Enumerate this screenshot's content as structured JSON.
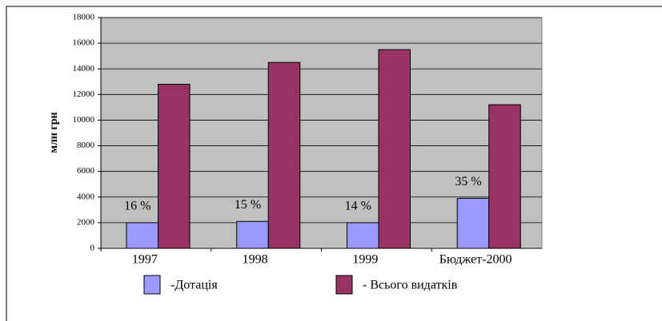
{
  "chart_data": {
    "type": "bar",
    "y_label": "млн грн",
    "categories": [
      "1997",
      "1998",
      "1999",
      "Бюджет-2000"
    ],
    "series": [
      {
        "name": "-Дотація",
        "color": "#9999ff",
        "values": [
          2000,
          2100,
          2000,
          3900
        ]
      },
      {
        "name": "- Всього видатків",
        "color": "#993366",
        "values": [
          12800,
          14500,
          15500,
          11200
        ]
      }
    ],
    "annotations": [
      "16 %",
      "15 %",
      "14 %",
      "35 %"
    ],
    "ylim": [
      0,
      18000
    ],
    "yticks": [
      0,
      2000,
      4000,
      6000,
      8000,
      10000,
      12000,
      14000,
      16000,
      18000
    ],
    "grid": true,
    "plot_background": "#c0c0c0"
  }
}
